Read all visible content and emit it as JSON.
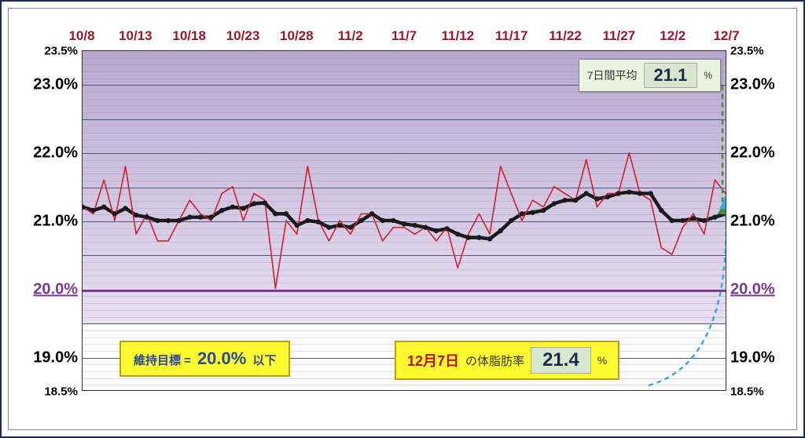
{
  "chart": {
    "type": "line",
    "ylim": [
      18.5,
      23.5
    ],
    "y_ticks_major": [
      19.0,
      21.0,
      22.0,
      23.0
    ],
    "y_ticks_small": [
      18.5,
      23.5
    ],
    "y_target_tick": 20.0,
    "y_minor_step": 0.1,
    "y_major_lines": [
      19.0,
      19.5,
      20.5,
      21.0,
      21.5,
      22.0,
      22.5,
      23.0
    ],
    "x_labels": [
      "10/8",
      "10/13",
      "10/18",
      "10/23",
      "10/28",
      "11/2",
      "11/7",
      "11/12",
      "11/17",
      "11/22",
      "11/27",
      "12/2",
      "12/7"
    ],
    "x_count": 61,
    "target_value": 20.0,
    "gradient_top_y": 23.5,
    "gradient_bottom_y": 19.5,
    "colors": {
      "border": "#1a2a5a",
      "x_label": "#9a1a2a",
      "target_line": "#7a3a9a",
      "grid_minor": "rgba(130,130,180,0.25)",
      "grid_major": "#4a5a8a",
      "gradient_top": "#b8a8d0",
      "gradient_bottom": "#e8e0f0",
      "red_line": "#d02030",
      "black_line": "#1a1a1a",
      "marker_fill": "#1a1a1a",
      "arrow_green": "#4a8a3a",
      "arrow_blue": "#3aa8d8"
    },
    "red_series": [
      21.2,
      21.1,
      21.6,
      21.0,
      21.8,
      20.8,
      21.1,
      20.7,
      20.7,
      21.0,
      21.3,
      21.1,
      21.0,
      21.4,
      21.5,
      21.0,
      21.4,
      21.3,
      20.0,
      21.0,
      20.8,
      21.8,
      21.0,
      20.7,
      21.0,
      20.8,
      21.1,
      21.1,
      20.7,
      20.9,
      20.9,
      20.8,
      20.9,
      20.7,
      20.9,
      20.3,
      20.8,
      21.1,
      20.8,
      21.8,
      21.4,
      21.0,
      21.3,
      21.2,
      21.5,
      21.4,
      21.3,
      21.9,
      21.2,
      21.4,
      21.4,
      22.0,
      21.4,
      21.3,
      20.6,
      20.5,
      20.9,
      21.1,
      20.8,
      21.6,
      21.4
    ],
    "black_series": [
      21.2,
      21.15,
      21.2,
      21.1,
      21.18,
      21.08,
      21.05,
      21.0,
      21.0,
      21.0,
      21.05,
      21.05,
      21.05,
      21.15,
      21.2,
      21.18,
      21.25,
      21.26,
      21.1,
      21.1,
      20.93,
      21.0,
      20.98,
      20.9,
      20.93,
      20.9,
      21.0,
      21.1,
      21.0,
      21.0,
      20.95,
      20.93,
      20.9,
      20.85,
      20.88,
      20.8,
      20.75,
      20.75,
      20.73,
      20.85,
      21.0,
      21.1,
      21.12,
      21.15,
      21.25,
      21.3,
      21.3,
      21.4,
      21.32,
      21.35,
      21.4,
      21.42,
      21.4,
      21.4,
      21.15,
      21.0,
      21.0,
      21.03,
      21.0,
      21.05,
      21.1
    ],
    "line_widths": {
      "red": 1.6,
      "black": 4.5
    },
    "marker_radius": 3.2
  },
  "avg_box": {
    "label": "7日間平均",
    "value": "21.1",
    "unit": "%"
  },
  "goal_box": {
    "prefix": "維持目標 =",
    "value": "20.0%",
    "suffix": "以下"
  },
  "today_box": {
    "date": "12月7日",
    "text": "の体脂肪率",
    "value": "21.4",
    "unit": "%"
  }
}
